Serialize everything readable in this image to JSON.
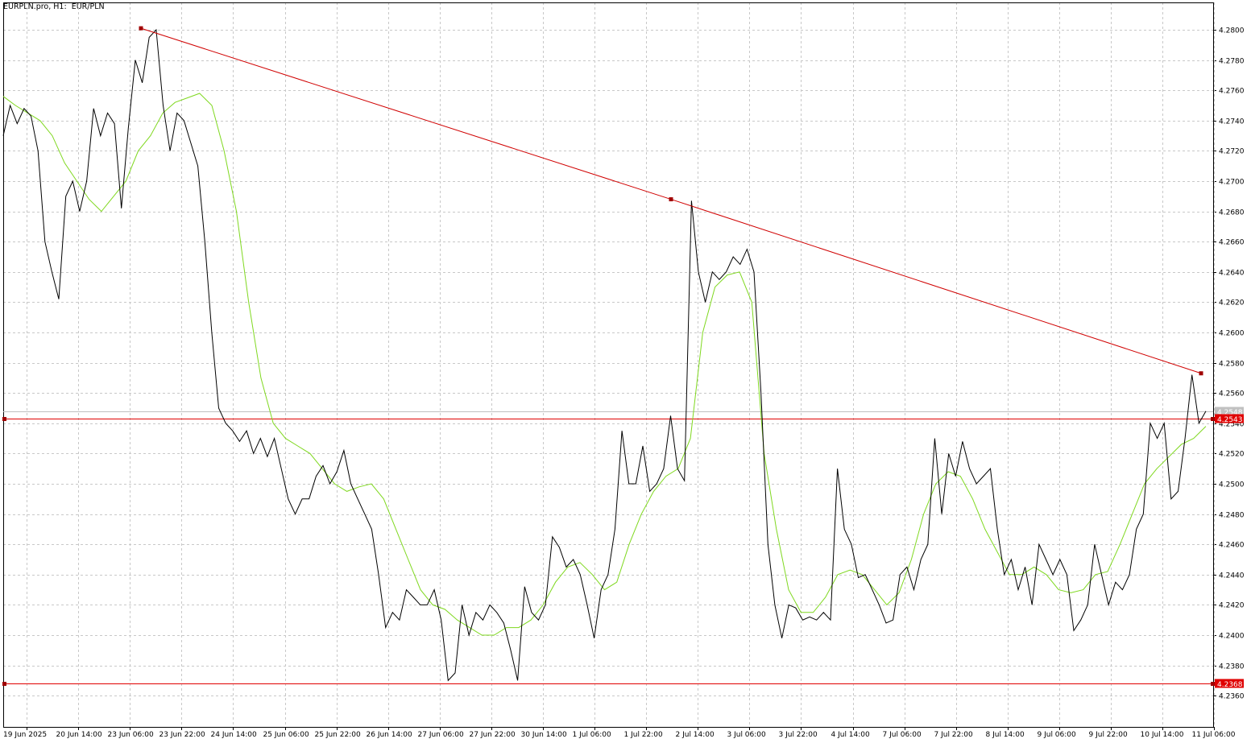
{
  "chart_data": {
    "type": "line",
    "title": "EURPLN.pro, H1:  EUR/PLN",
    "ylim": [
      4.235,
      4.2825
    ],
    "y_ticks": [
      "4.2360",
      "4.2380",
      "4.2400",
      "4.2420",
      "4.2440",
      "4.2460",
      "4.2480",
      "4.2500",
      "4.2520",
      "4.2540",
      "4.2560",
      "4.2580",
      "4.2600",
      "4.2620",
      "4.2640",
      "4.2660",
      "4.2680",
      "4.2700",
      "4.2720",
      "4.2740",
      "4.2760",
      "4.2780",
      "4.2800"
    ],
    "x_tick_labels": [
      "19 Jun 2025",
      "20 Jun 14:00",
      "23 Jun 06:00",
      "23 Jun 22:00",
      "24 Jun 14:00",
      "25 Jun 06:00",
      "25 Jun 22:00",
      "26 Jun 14:00",
      "27 Jun 06:00",
      "27 Jun 22:00",
      "30 Jun 14:00",
      "1 Jul 06:00",
      "1 Jul 22:00",
      "2 Jul 14:00",
      "3 Jul 06:00",
      "3 Jul 22:00",
      "4 Jul 14:00",
      "7 Jul 06:00",
      "7 Jul 22:00",
      "8 Jul 14:00",
      "9 Jul 06:00",
      "9 Jul 22:00",
      "10 Jul 14:00",
      "11 Jul 06:00"
    ],
    "grid": true,
    "series": [
      {
        "role": "price",
        "color": "#000000",
        "values": [
          4.273,
          4.275,
          4.2738,
          4.2748,
          4.2743,
          4.272,
          4.266,
          4.264,
          4.2622,
          4.269,
          4.27,
          4.268,
          4.27,
          4.2748,
          4.273,
          4.2745,
          4.2738,
          4.2682,
          4.2735,
          4.278,
          4.2765,
          4.2795,
          4.28,
          4.275,
          4.272,
          4.2745,
          4.274,
          4.2725,
          4.271,
          4.266,
          4.26,
          4.255,
          4.254,
          4.2535,
          4.2528,
          4.2535,
          4.252,
          4.253,
          4.2518,
          4.253,
          4.251,
          4.249,
          4.248,
          4.249,
          4.249,
          4.2505,
          4.2512,
          4.25,
          4.2508,
          4.2522,
          4.25,
          4.249,
          4.248,
          4.247,
          4.244,
          4.2405,
          4.2415,
          4.241,
          4.243,
          4.2425,
          4.242,
          4.242,
          4.243,
          4.241,
          4.237,
          4.2375,
          4.242,
          4.24,
          4.2415,
          4.241,
          4.242,
          4.2415,
          4.2408,
          4.239,
          4.237,
          4.2432,
          4.2415,
          4.241,
          4.242,
          4.2465,
          4.2458,
          4.2445,
          4.245,
          4.244,
          4.242,
          4.2398,
          4.243,
          4.244,
          4.247,
          4.2535,
          4.25,
          4.25,
          4.2525,
          4.2495,
          4.25,
          4.251,
          4.2545,
          4.251,
          4.2502,
          4.2687,
          4.264,
          4.262,
          4.264,
          4.2635,
          4.264,
          4.265,
          4.2645,
          4.2655,
          4.264,
          4.256,
          4.246,
          4.242,
          4.2398,
          4.242,
          4.2418,
          4.241,
          4.2412,
          4.241,
          4.2415,
          4.241,
          4.251,
          4.247,
          4.246,
          4.2438,
          4.244,
          4.243,
          4.242,
          4.2408,
          4.241,
          4.244,
          4.2445,
          4.243,
          4.245,
          4.246,
          4.253,
          4.248,
          4.252,
          4.2505,
          4.2528,
          4.251,
          4.25,
          4.2505,
          4.251,
          4.247,
          4.244,
          4.245,
          4.243,
          4.2445,
          4.242,
          4.246,
          4.245,
          4.244,
          4.245,
          4.244,
          4.2403,
          4.241,
          4.242,
          4.246,
          4.244,
          4.242,
          4.2435,
          4.243,
          4.244,
          4.247,
          4.248,
          4.254,
          4.253,
          4.254,
          4.249,
          4.2495,
          4.253,
          4.2572,
          4.254,
          4.2548
        ]
      },
      {
        "role": "moving-average",
        "color": "#7fd81f",
        "values": [
          4.2756,
          4.275,
          4.2745,
          4.274,
          4.273,
          4.2712,
          4.27,
          4.2688,
          4.268,
          4.269,
          4.27,
          4.272,
          4.273,
          4.2745,
          4.2752,
          4.2755,
          4.2758,
          4.275,
          4.272,
          4.268,
          4.262,
          4.257,
          4.254,
          4.253,
          4.2525,
          4.252,
          4.251,
          4.25,
          4.2495,
          4.2498,
          4.25,
          4.249,
          4.247,
          4.245,
          4.243,
          4.242,
          4.2417,
          4.241,
          4.2405,
          4.24,
          4.24,
          4.2405,
          4.2405,
          4.241,
          4.242,
          4.2435,
          4.2445,
          4.2448,
          4.244,
          4.243,
          4.2435,
          4.246,
          4.248,
          4.2495,
          4.2505,
          4.251,
          4.253,
          4.26,
          4.263,
          4.2638,
          4.264,
          4.262,
          4.252,
          4.247,
          4.243,
          4.2415,
          4.2415,
          4.2425,
          4.244,
          4.2443,
          4.244,
          4.243,
          4.242,
          4.2428,
          4.245,
          4.248,
          4.25,
          4.2508,
          4.2505,
          4.249,
          4.247,
          4.2455,
          4.244,
          4.244,
          4.2445,
          4.244,
          4.243,
          4.2428,
          4.243,
          4.244,
          4.2442,
          4.246,
          4.248,
          4.25,
          4.251,
          4.2518,
          4.2526,
          4.253,
          4.2538
        ]
      }
    ],
    "trendline": {
      "color": "#d00000",
      "points": [
        {
          "x": "23 Jun 06:00",
          "y": 4.2801
        },
        {
          "x": "2 Jul 14:00",
          "y": 4.2688
        },
        {
          "x": "11 Jul 06:00",
          "y": 4.2573
        }
      ]
    },
    "horizontal_lines": [
      {
        "value": 4.2543,
        "label": "4.2543",
        "color": "#e00000"
      },
      {
        "value": 4.2368,
        "label": "4.2368",
        "color": "#e00000"
      },
      {
        "value": 4.2548,
        "label": "4.2548",
        "color": "#c0c0c0"
      }
    ]
  }
}
